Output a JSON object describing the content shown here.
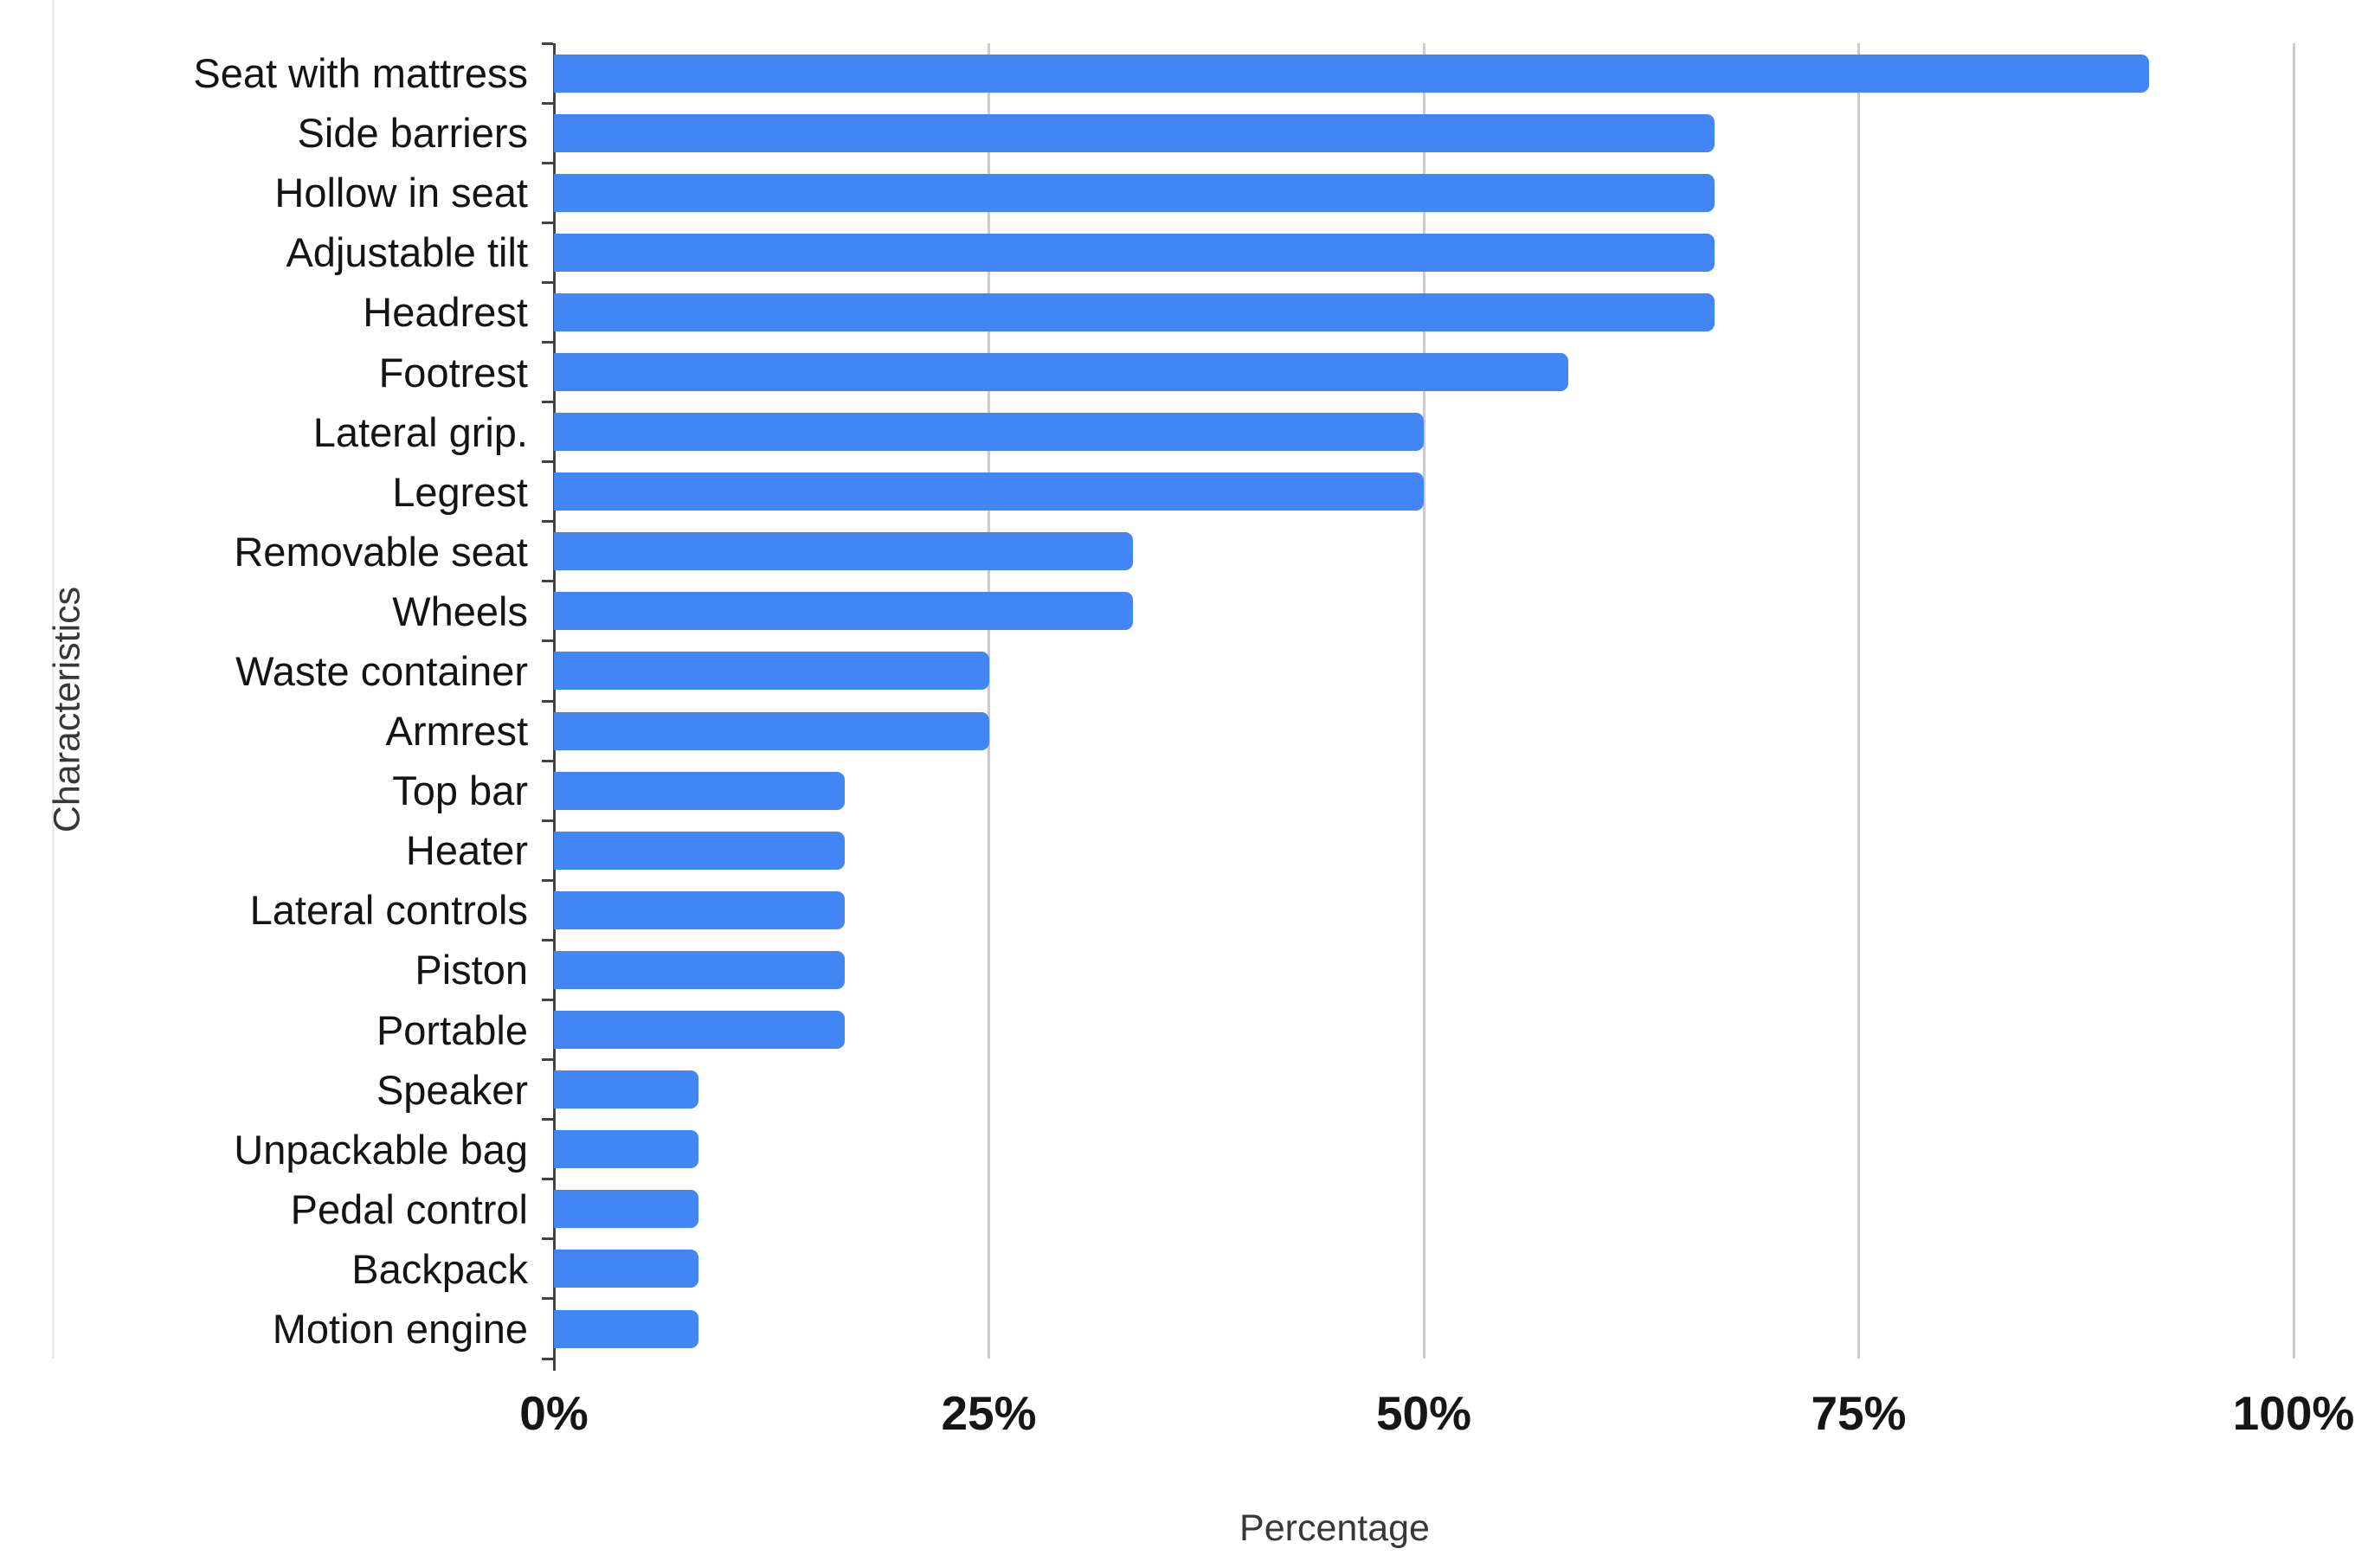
{
  "chart_data": {
    "type": "bar",
    "orientation": "horizontal",
    "title": "",
    "categories": [
      "Seat with mattress",
      "Side barriers",
      "Hollow in seat",
      "Adjustable tilt",
      "Headrest",
      "Footrest",
      "Lateral grip.",
      "Legrest",
      "Removable seat",
      "Wheels",
      "Waste container",
      "Armrest",
      "Top bar",
      "Heater",
      "Lateral controls",
      "Piston",
      "Portable",
      "Speaker",
      "Unpackable bag",
      "Pedal control",
      "Backpack",
      "Motion engine"
    ],
    "values": [
      91.7,
      66.7,
      66.7,
      66.7,
      66.7,
      58.3,
      50,
      50,
      33.3,
      33.3,
      25,
      25,
      16.7,
      16.7,
      16.7,
      16.7,
      16.7,
      8.3,
      8.3,
      8.3,
      8.3,
      8.3
    ],
    "xlabel": "Percentage",
    "ylabel": "Characteristics",
    "xlim": [
      0,
      100
    ],
    "x_tick_values": [
      0,
      25,
      50,
      75,
      100
    ],
    "x_tick_labels": [
      "0%",
      "25%",
      "50%",
      "75%",
      "100%"
    ],
    "grid": true,
    "legend": false,
    "colors": {
      "bar": "#4285f4",
      "gridline": "#cccccc",
      "axis_line": "#424242",
      "tick_mark": "#424242",
      "tick_text": "#161616",
      "category_text": "#141414",
      "axis_title_text": "#383838"
    }
  }
}
